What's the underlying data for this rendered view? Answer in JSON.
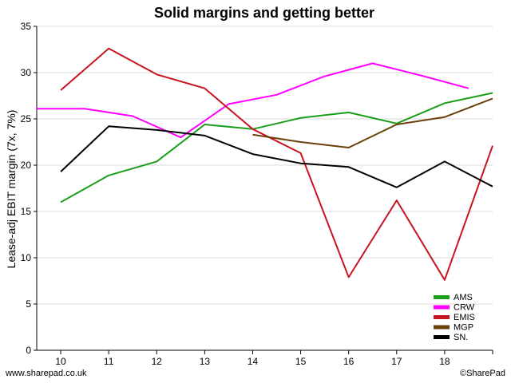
{
  "chart_data": {
    "type": "line",
    "title": "Solid margins and getting better",
    "ylabel": "Lease-adj EBIT margin (7x, 7%)",
    "xlabel": "",
    "ylim": [
      0,
      35
    ],
    "yticks": [
      0,
      5,
      10,
      15,
      20,
      25,
      30,
      35
    ],
    "xlim": [
      9.5,
      19
    ],
    "xticks": [
      10,
      11,
      12,
      13,
      14,
      15,
      16,
      17,
      18
    ],
    "grid": "horizontal",
    "legend_position": "bottom-right",
    "series": [
      {
        "name": "AMS",
        "color": "#1a9e1a",
        "points": [
          [
            10,
            16.0
          ],
          [
            11,
            18.9
          ],
          [
            12,
            20.4
          ],
          [
            13,
            24.4
          ],
          [
            14,
            23.9
          ],
          [
            15,
            25.1
          ],
          [
            16,
            25.7
          ],
          [
            17,
            24.5
          ],
          [
            18,
            26.7
          ],
          [
            19,
            27.8
          ]
        ]
      },
      {
        "name": "CRW",
        "color": "#ff00ff",
        "points": [
          [
            9.5,
            26.1
          ],
          [
            10.5,
            26.1
          ],
          [
            11.5,
            25.3
          ],
          [
            12.5,
            23.0
          ],
          [
            13.5,
            26.6
          ],
          [
            14.5,
            27.6
          ],
          [
            15.5,
            29.6
          ],
          [
            16.5,
            31.0
          ],
          [
            17.5,
            29.7
          ],
          [
            18.5,
            28.3
          ]
        ]
      },
      {
        "name": "EMIS",
        "color": "#c8141e",
        "points": [
          [
            10,
            28.1
          ],
          [
            11,
            32.6
          ],
          [
            12,
            29.8
          ],
          [
            13,
            28.3
          ],
          [
            14,
            23.9
          ],
          [
            15,
            21.3
          ],
          [
            16,
            7.9
          ],
          [
            17,
            16.2
          ],
          [
            18,
            7.6
          ],
          [
            19,
            22.1
          ]
        ]
      },
      {
        "name": "MGP",
        "color": "#6b3f0a",
        "points": [
          [
            14,
            23.3
          ],
          [
            15,
            22.5
          ],
          [
            16,
            21.9
          ],
          [
            17,
            24.4
          ],
          [
            18,
            25.2
          ],
          [
            19,
            27.2
          ]
        ]
      },
      {
        "name": "SN.",
        "color": "#000000",
        "points": [
          [
            10,
            19.3
          ],
          [
            11,
            24.2
          ],
          [
            12,
            23.8
          ],
          [
            13,
            23.2
          ],
          [
            14,
            21.2
          ],
          [
            15,
            20.2
          ],
          [
            16,
            19.8
          ],
          [
            17,
            17.6
          ],
          [
            18,
            20.4
          ],
          [
            19,
            17.7
          ]
        ]
      }
    ]
  },
  "footer": {
    "left": "www.sharepad.co.uk",
    "right": "©SharePad"
  }
}
